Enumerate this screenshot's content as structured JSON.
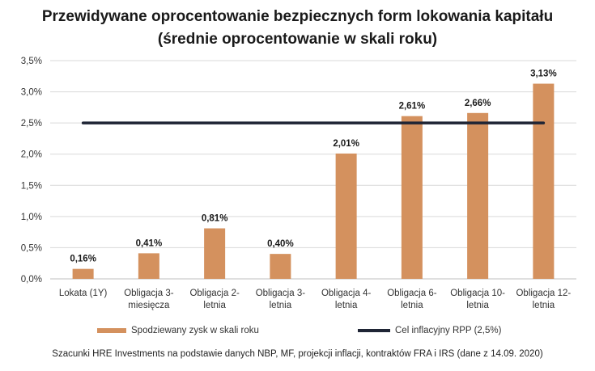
{
  "title_line1": "Przewidywane oprocentowanie bezpiecznych form lokowania kapitału",
  "title_line2": "(średnie oprocentowanie w skali roku)",
  "footer": "Szacunki HRE Investments na podstawie danych NBP, MF, projekcji inflacji, kontraktów FRA i IRS (dane z 14.09. 2020)",
  "colors": {
    "bar": "#d4915e",
    "line": "#1f2535",
    "grid": "#d9d9d9",
    "axis": "#bfbfbf"
  },
  "chart_data": {
    "type": "bar",
    "title": "Przewidywane oprocentowanie bezpiecznych form lokowania kapitału (średnie oprocentowanie w skali roku)",
    "categories": [
      [
        "Lokata (1Y)"
      ],
      [
        "Obligacja 3-",
        "miesięcza"
      ],
      [
        "Obligacja 2-",
        "letnia"
      ],
      [
        "Obligacja 3-",
        "letnia"
      ],
      [
        "Obligacja 4-",
        "letnia"
      ],
      [
        "Obligacja 6-",
        "letnia"
      ],
      [
        "Obligacja 10-",
        "letnia"
      ],
      [
        "Obligacja 12-",
        "letnia"
      ]
    ],
    "series": [
      {
        "name": "Spodziewany zysk w skali roku",
        "kind": "bar",
        "values": [
          0.16,
          0.41,
          0.81,
          0.4,
          2.01,
          2.61,
          2.66,
          3.13
        ],
        "labels": [
          "0,16%",
          "0,41%",
          "0,81%",
          "0,40%",
          "2,01%",
          "2,61%",
          "2,66%",
          "3,13%"
        ]
      },
      {
        "name": "Cel inflacyjny RPP (2,5%)",
        "kind": "line",
        "values": [
          2.5,
          2.5,
          2.5,
          2.5,
          2.5,
          2.5,
          2.5,
          2.5
        ]
      }
    ],
    "yticks": [
      0,
      0.5,
      1.0,
      1.5,
      2.0,
      2.5,
      3.0,
      3.5
    ],
    "ytick_labels": [
      "0,0%",
      "0,5%",
      "1,0%",
      "1,5%",
      "2,0%",
      "2,5%",
      "3,0%",
      "3,5%"
    ],
    "ylim": [
      0,
      3.5
    ],
    "xlabel": "",
    "ylabel": "",
    "grid": true,
    "legend_position": "bottom"
  }
}
